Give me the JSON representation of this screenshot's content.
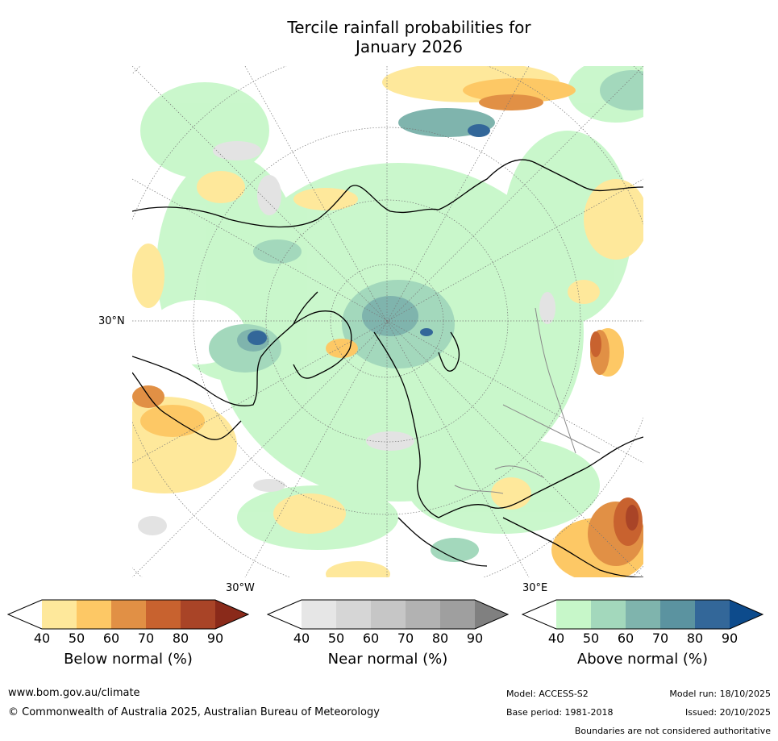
{
  "title": {
    "line1": "Tercile rainfall probabilities for",
    "line2": "January 2026"
  },
  "map": {
    "lat_label": "30°N",
    "lon_labels": {
      "west": "30°W",
      "east": "30°E"
    }
  },
  "colorbars": [
    {
      "label": "Below normal (%)",
      "ticks": [
        "40",
        "50",
        "60",
        "70",
        "80",
        "90"
      ],
      "colors": [
        "#ffffff",
        "#fee89b",
        "#fdc865",
        "#e19045",
        "#c8622f",
        "#a94427",
        "#8a2a1a"
      ]
    },
    {
      "label": "Near normal (%)",
      "ticks": [
        "40",
        "50",
        "60",
        "70",
        "80",
        "90"
      ],
      "colors": [
        "#ffffff",
        "#e6e6e6",
        "#d6d6d6",
        "#c6c6c6",
        "#b2b2b2",
        "#9f9f9f",
        "#808080"
      ]
    },
    {
      "label": "Above normal (%)",
      "ticks": [
        "40",
        "50",
        "60",
        "70",
        "80",
        "90"
      ],
      "colors": [
        "#ffffff",
        "#c7f7c9",
        "#a3d8bc",
        "#7fb4ad",
        "#5b93a0",
        "#336799",
        "#0d4b8c"
      ]
    }
  ],
  "footer": {
    "website": "www.bom.gov.au/climate",
    "copyright": "© Commonwealth of Australia 2025, Australian Bureau of Meteorology",
    "model": "Model: ACCESS-S2",
    "base_period": "Base period: 1981-2018",
    "model_run": "Model run: 18/10/2025",
    "issued": "Issued: 20/10/2025",
    "disclaimer": "Boundaries are not considered authoritative"
  }
}
